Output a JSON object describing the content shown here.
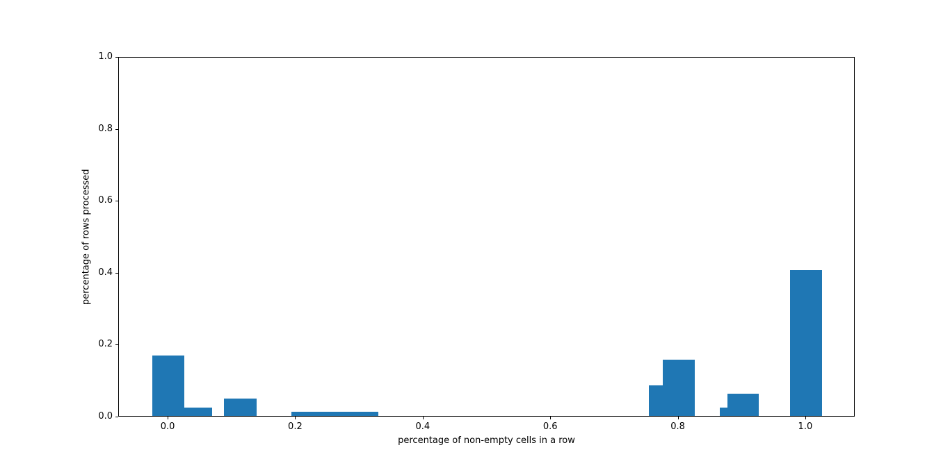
{
  "figure": {
    "background": "#ffffff"
  },
  "chart_data": {
    "type": "bar",
    "title": "",
    "xlabel": "percentage of non-empty cells in a row",
    "ylabel": "percentage of rows processed",
    "xlim": [
      -0.0775,
      1.0775
    ],
    "ylim": [
      0,
      1.0
    ],
    "grid": false,
    "legend": null,
    "bar_color": "#1f77b4",
    "x_ticks": [
      {
        "value": 0.0,
        "label": "0.0"
      },
      {
        "value": 0.2,
        "label": "0.2"
      },
      {
        "value": 0.4,
        "label": "0.4"
      },
      {
        "value": 0.6,
        "label": "0.6"
      },
      {
        "value": 0.8,
        "label": "0.8"
      },
      {
        "value": 1.0,
        "label": "1.0"
      }
    ],
    "y_ticks": [
      {
        "value": 0.0,
        "label": "0.0"
      },
      {
        "value": 0.2,
        "label": "0.2"
      },
      {
        "value": 0.4,
        "label": "0.4"
      },
      {
        "value": 0.6,
        "label": "0.6"
      },
      {
        "value": 0.8,
        "label": "0.8"
      },
      {
        "value": 1.0,
        "label": "1.0"
      }
    ],
    "bars": [
      {
        "x_left": -0.0251,
        "x_right": 0.0251,
        "height": 0.168
      },
      {
        "x_left": 0.0251,
        "x_right": 0.0685,
        "height": 0.024
      },
      {
        "x_left": 0.0867,
        "x_right": 0.138,
        "height": 0.048
      },
      {
        "x_left": 0.1929,
        "x_right": 0.3293,
        "height": 0.012
      },
      {
        "x_left": 0.753,
        "x_right": 0.7749,
        "height": 0.085
      },
      {
        "x_left": 0.7749,
        "x_right": 0.8257,
        "height": 0.156
      },
      {
        "x_left": 0.8647,
        "x_right": 0.8767,
        "height": 0.024
      },
      {
        "x_left": 0.8767,
        "x_right": 0.9258,
        "height": 0.062
      },
      {
        "x_left": 0.9748,
        "x_right": 1.0251,
        "height": 0.405
      }
    ]
  }
}
